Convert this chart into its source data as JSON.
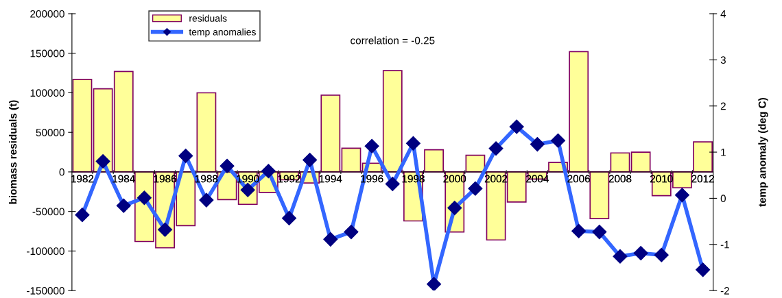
{
  "chart_data": {
    "type": "bar",
    "categories": [
      "1982",
      null,
      "1984",
      null,
      "1986",
      null,
      "1988",
      null,
      "1990",
      null,
      "1992",
      null,
      "1994",
      null,
      "1996",
      null,
      "1998",
      null,
      "2000",
      null,
      "2002",
      null,
      "2004",
      null,
      "2006",
      null,
      "2008",
      null,
      "2010",
      null,
      "2012"
    ],
    "series": [
      {
        "name": "residuals",
        "color": "#ffff99",
        "values": [
          117000,
          105000,
          127000,
          -88000,
          -96000,
          -68000,
          100000,
          -35000,
          -41000,
          -26000,
          -10000,
          -14000,
          97000,
          30000,
          11000,
          128000,
          -62000,
          28000,
          -76000,
          21000,
          -86000,
          -38000,
          -9000,
          12000,
          152000,
          -59000,
          24000,
          25000,
          -30000,
          -20000,
          38000
        ]
      },
      {
        "name": "temp anomalies",
        "type": "line",
        "axis": "y2",
        "color": "#3366ff",
        "marker": "diamond",
        "values": [
          -0.36,
          0.8,
          -0.16,
          0.01,
          -0.68,
          0.92,
          -0.04,
          0.7,
          0.18,
          0.59,
          -0.43,
          0.83,
          -0.89,
          -0.73,
          1.13,
          0.31,
          1.19,
          -1.86,
          -0.21,
          0.21,
          1.08,
          1.55,
          1.17,
          1.25,
          -0.71,
          -0.73,
          -1.26,
          -1.19,
          -1.23,
          0.07,
          -1.55
        ]
      }
    ],
    "ylabel": "biomass residuals (t)",
    "y2label": "temp anomaly (deg C)",
    "ylim": [
      -150000,
      200000
    ],
    "yticks": [
      -150000,
      -100000,
      -50000,
      0,
      50000,
      100000,
      150000,
      200000
    ],
    "y2lim": [
      -2,
      4
    ],
    "y2ticks": [
      -2,
      -1,
      0,
      1,
      2,
      3,
      4
    ],
    "annotations": [
      "correlation = -0.25"
    ],
    "legend": "top left",
    "grid": false
  }
}
